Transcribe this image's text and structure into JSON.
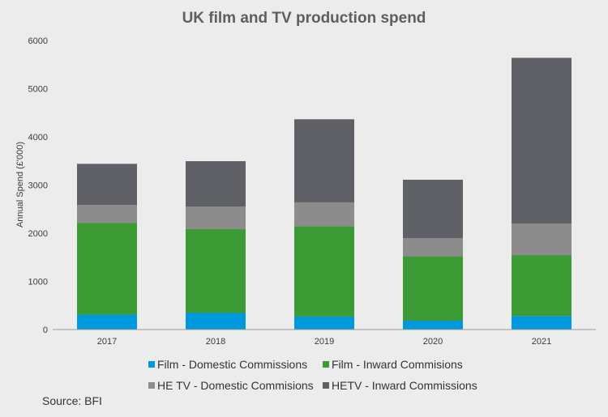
{
  "chart_data": {
    "type": "bar",
    "stacked": true,
    "title": "UK film and TV production spend",
    "xlabel": "",
    "ylabel": "Annual Spend (£'000)",
    "ylim": [
      0,
      6000
    ],
    "yticks": [
      "0",
      "1000",
      "2000",
      "3000",
      "4000",
      "5000",
      "6000"
    ],
    "categories": [
      "2017",
      "2018",
      "2019",
      "2020",
      "2021"
    ],
    "grid": false,
    "legend_position": "bottom",
    "series": [
      {
        "name": "Film - Domestic Commissions",
        "color": "#0099dd",
        "values": [
          310,
          345,
          270,
          185,
          280
        ]
      },
      {
        "name": "Film - Inward Commisions",
        "color": "#3c9b35",
        "values": [
          1900,
          1745,
          1875,
          1335,
          1265
        ]
      },
      {
        "name": "HE TV - Domestic Commisions",
        "color": "#8c8c8c",
        "values": [
          375,
          460,
          495,
          375,
          655
        ]
      },
      {
        "name": "HETV - Inward Commissions",
        "color": "#5f6166",
        "values": [
          855,
          945,
          1725,
          1215,
          3440
        ]
      }
    ]
  },
  "footer": {
    "source": "Source: BFI"
  }
}
